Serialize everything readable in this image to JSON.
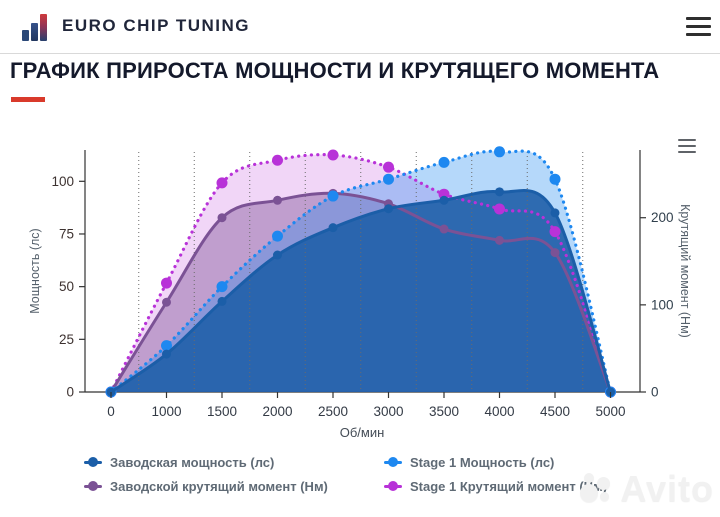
{
  "header": {
    "brand": "EURO CHIP TUNING"
  },
  "page": {
    "title": "ГРАФИК ПРИРОСТА МОЩНОСТИ И КРУТЯЩЕГО МОМЕНТА",
    "accent_color": "#d93a2b"
  },
  "chart_data": {
    "type": "area",
    "x": [
      0,
      1000,
      1500,
      2000,
      2500,
      3000,
      3500,
      4000,
      4500,
      5000
    ],
    "xlabel": "Об/мин",
    "ylabel_left": "Мощность (лс)",
    "ylabel_right": "Крутящий момент (Нм)",
    "y_left_ticks": [
      0,
      25,
      50,
      75,
      100
    ],
    "y_right_ticks": [
      0,
      100,
      200
    ],
    "y_left_max": 113,
    "y_right_max": 272,
    "grid": "dotted vertical lines between categories, no horizontal gridlines",
    "legend_position": "bottom",
    "series": [
      {
        "id": "factory-power",
        "name": "Заводская мощность (лс)",
        "axis": "left",
        "style": "solid",
        "color": "#1b5ea8",
        "fill": "rgba(31,95,168,0.9)",
        "marker_radius": 4.5,
        "values": [
          0,
          18,
          43,
          65,
          78,
          87,
          91,
          95,
          85,
          0
        ]
      },
      {
        "id": "stage1-power",
        "name": "Stage 1 Мощность (лс)",
        "axis": "left",
        "style": "dotted",
        "color": "#1e88f0",
        "fill": "rgba(30,136,240,0.33)",
        "marker_radius": 5.5,
        "values": [
          0,
          22,
          50,
          74,
          93,
          101,
          109,
          114,
          101,
          0
        ]
      },
      {
        "id": "factory-torque",
        "name": "Заводской крутящий момент (Нм)",
        "axis": "right",
        "style": "solid",
        "color": "#7b5295",
        "fill": "rgba(123,82,149,0.42)",
        "marker_radius": 4.5,
        "values": [
          0,
          103,
          200,
          220,
          228,
          216,
          187,
          174,
          160,
          0
        ]
      },
      {
        "id": "stage1-torque",
        "name": "Stage 1 Крутящий момент (Нм)",
        "axis": "right",
        "style": "dotted",
        "color": "#b832d8",
        "fill": "rgba(184,50,216,0.2)",
        "marker_radius": 5.5,
        "values": [
          0,
          125,
          240,
          266,
          272,
          258,
          227,
          210,
          184,
          0
        ]
      }
    ]
  },
  "legend": {
    "items": [
      {
        "label": "Заводская мощность (лс)",
        "color": "#1b5ea8"
      },
      {
        "label": "Заводской крутящий момент (Нм)",
        "color": "#7b5295"
      },
      {
        "label": "Stage 1 Мощность (лс)",
        "color": "#1e88f0"
      },
      {
        "label": "Stage 1 Крутящий момент (Нм)",
        "color": "#b832d8"
      }
    ]
  },
  "watermark": {
    "text": "Avito"
  }
}
